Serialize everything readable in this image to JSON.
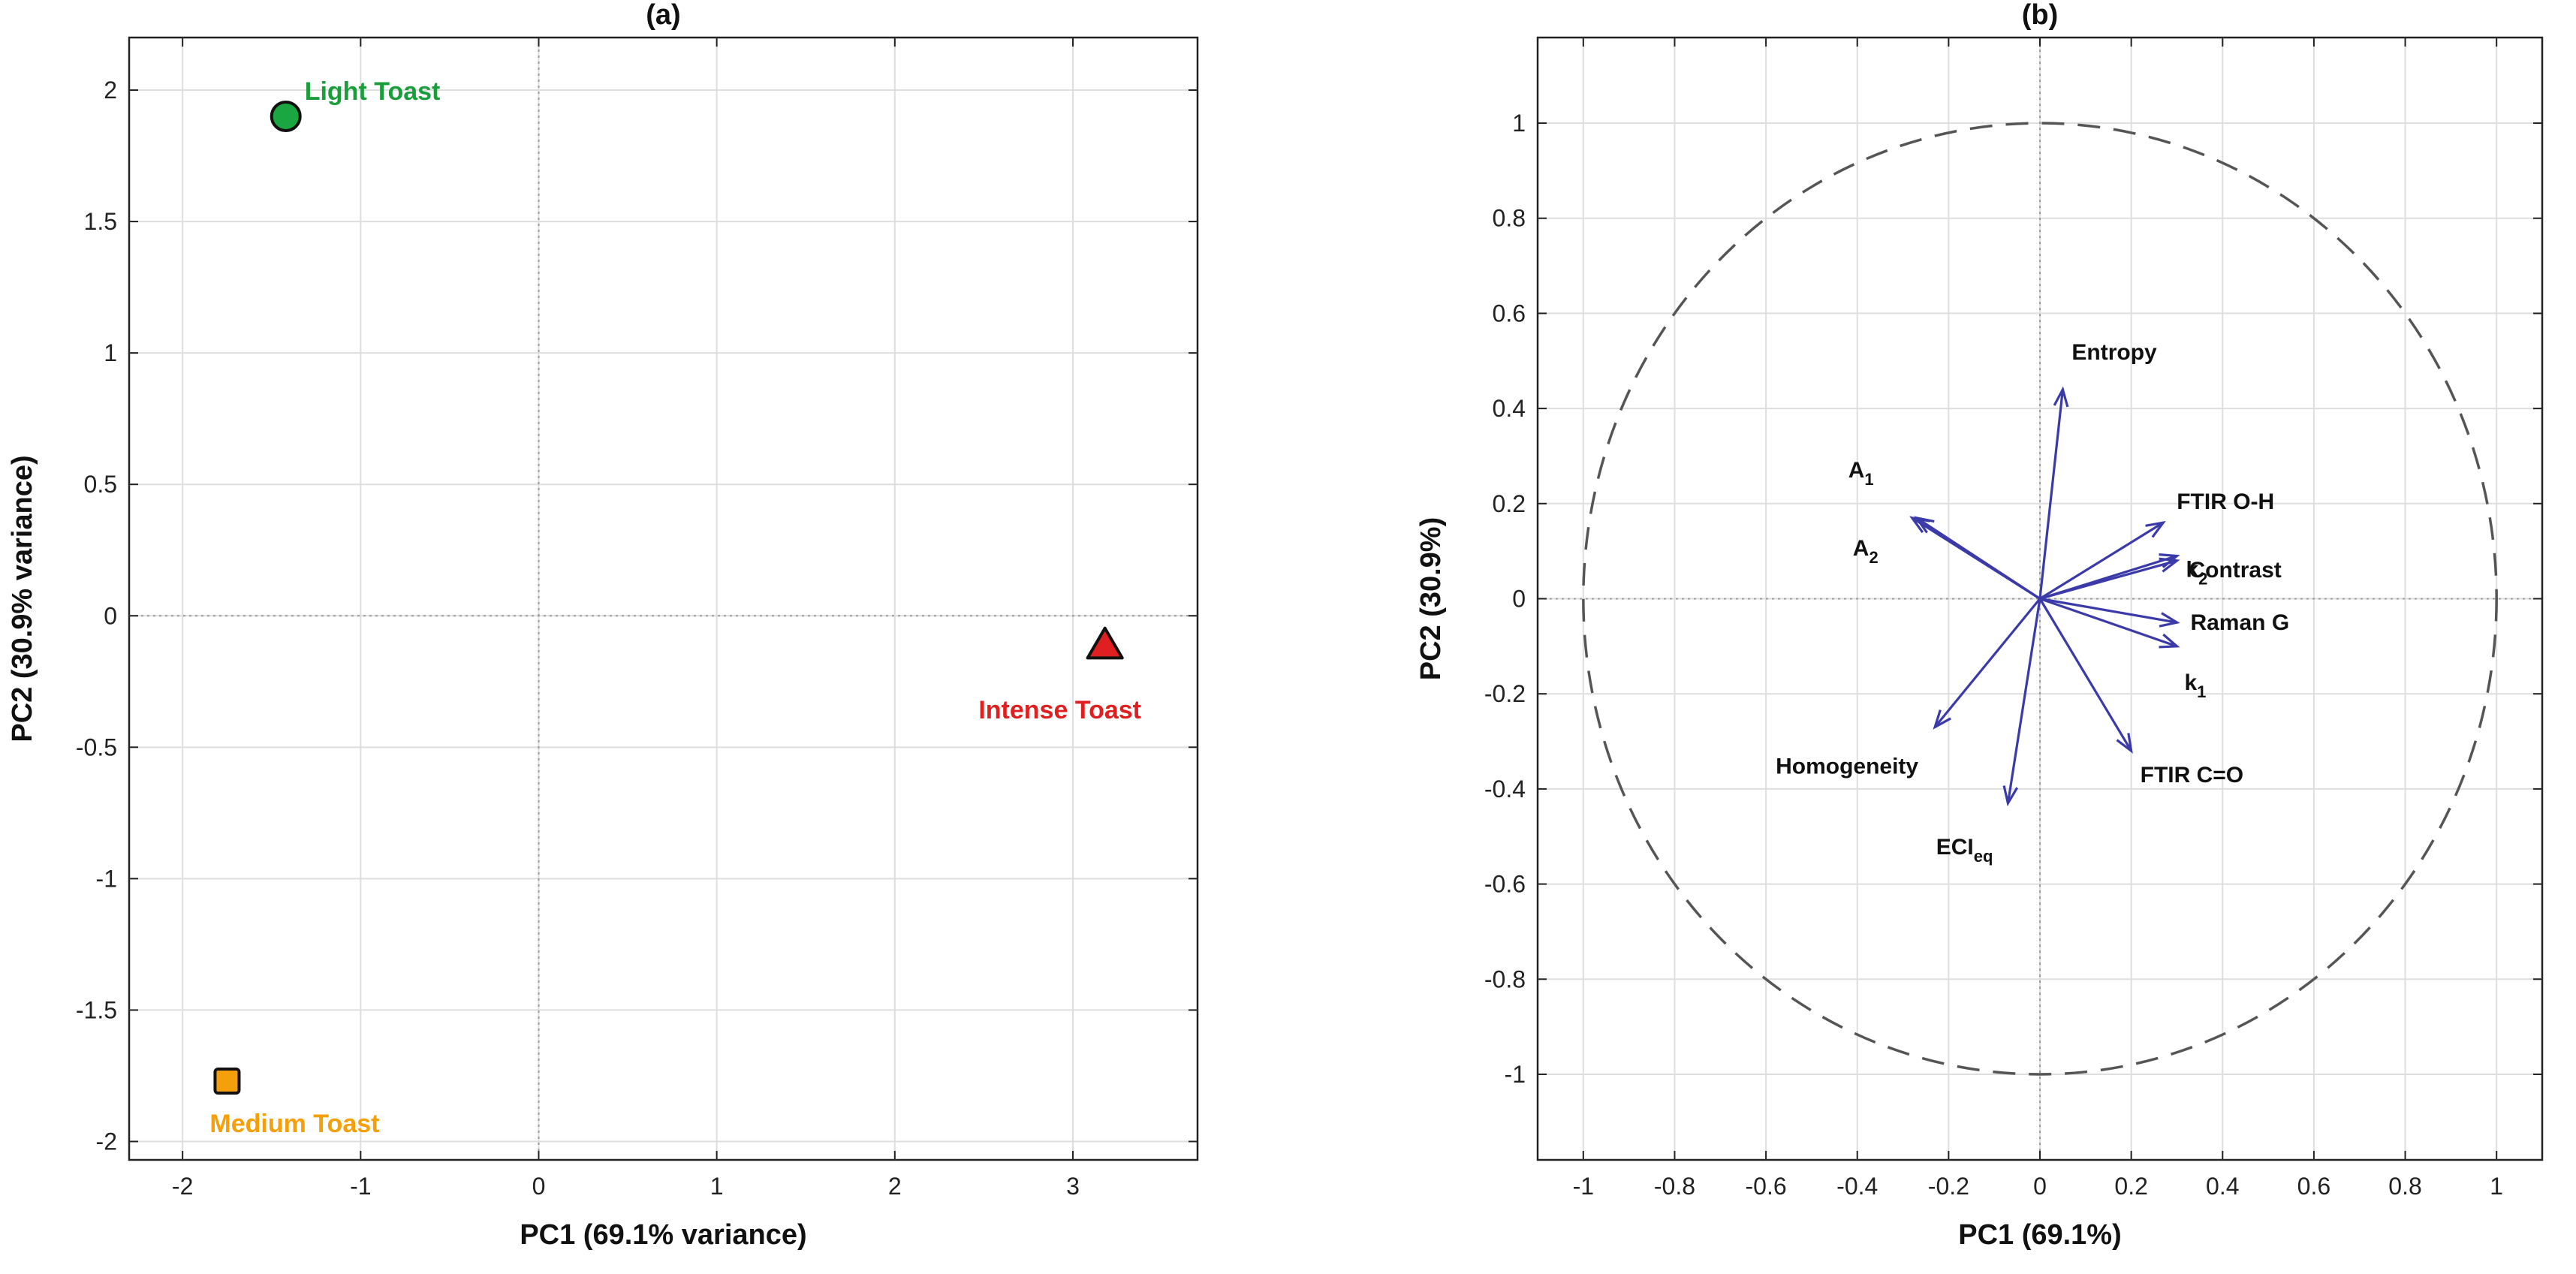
{
  "chart_data": [
    {
      "type": "scatter",
      "title": "(a)",
      "xlabel": "PC1 (69.1% variance)",
      "ylabel": "PC2 (30.9% variance)",
      "xlim": [
        -2.3,
        3.7
      ],
      "ylim": [
        -2.07,
        2.2
      ],
      "xticks": [
        -2,
        -1,
        0,
        1,
        2,
        3
      ],
      "yticks": [
        -2,
        -1.5,
        -1,
        -0.5,
        0,
        0.5,
        1,
        1.5,
        2
      ],
      "grid": true,
      "points": [
        {
          "name": "Light Toast",
          "x": -1.42,
          "y": 1.9,
          "marker": "circle",
          "color": "#1aa640",
          "label_color": "#1a9e3c"
        },
        {
          "name": "Intense Toast",
          "x": 3.18,
          "y": -0.11,
          "marker": "triangle",
          "color": "#e02020",
          "label_color": "#e02020"
        },
        {
          "name": "Medium Toast",
          "x": -1.75,
          "y": -1.77,
          "marker": "square",
          "color": "#f5a00a",
          "label_color": "#f5a00a"
        }
      ]
    },
    {
      "type": "biplot",
      "title": "(b)",
      "xlabel": "PC1 (69.1%)",
      "ylabel": "PC2 (30.9%)",
      "xlim": [
        -1.1,
        1.1
      ],
      "ylim": [
        -1.18,
        1.18
      ],
      "xticks": [
        -1,
        -0.8,
        -0.6,
        -0.4,
        -0.2,
        0,
        0.2,
        0.4,
        0.6,
        0.8,
        1
      ],
      "yticks": [
        -1,
        -0.8,
        -0.6,
        -0.4,
        -0.2,
        0,
        0.2,
        0.4,
        0.6,
        0.8,
        1
      ],
      "grid": true,
      "unit_circle": true,
      "arrow_color": "#3a3aa8",
      "loadings": [
        {
          "label": "Entropy",
          "x": 0.05,
          "y": 0.44
        },
        {
          "label": "A",
          "sub": "1",
          "x": -0.28,
          "y": 0.17
        },
        {
          "label": "A",
          "sub": "2",
          "x": -0.27,
          "y": 0.17
        },
        {
          "label": "FTIR O-H",
          "x": 0.27,
          "y": 0.16
        },
        {
          "label": "k",
          "sub": "2",
          "x": 0.3,
          "y": 0.09
        },
        {
          "label": "Contrast",
          "x": 0.3,
          "y": 0.08
        },
        {
          "label": "Raman G",
          "x": 0.3,
          "y": -0.05
        },
        {
          "label": "k",
          "sub": "1",
          "x": 0.3,
          "y": -0.1
        },
        {
          "label": "FTIR C=O",
          "x": 0.2,
          "y": -0.32
        },
        {
          "label": "Homogeneity",
          "x": -0.23,
          "y": -0.27
        },
        {
          "label": "ECI",
          "sub": "eq",
          "x": -0.07,
          "y": -0.43
        }
      ]
    }
  ]
}
